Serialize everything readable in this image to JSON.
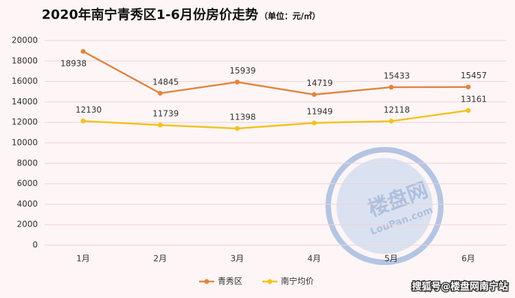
{
  "chart_data": {
    "type": "line",
    "title": "2020年南宁青秀区1-6月份房价走势",
    "subtitle": "（单位：元/㎡）",
    "categories": [
      "1月",
      "2月",
      "3月",
      "4月",
      "5月",
      "6月"
    ],
    "series": [
      {
        "name": "青秀区",
        "color": "#e0853f",
        "values": [
          18938,
          14845,
          15939,
          14719,
          15433,
          15457
        ]
      },
      {
        "name": "南宁均价",
        "color": "#f2c21b",
        "values": [
          12130,
          11739,
          11398,
          11949,
          12118,
          13161
        ]
      }
    ],
    "ylim": [
      0,
      20000
    ],
    "yticks": [
      0,
      2000,
      4000,
      6000,
      8000,
      10000,
      12000,
      14000,
      16000,
      18000,
      20000
    ],
    "grid": true,
    "legend": "bottom",
    "watermark": {
      "title": "楼盘网",
      "url": "LouPan.com"
    },
    "source": "搜狐号@楼盘网南宁站"
  }
}
